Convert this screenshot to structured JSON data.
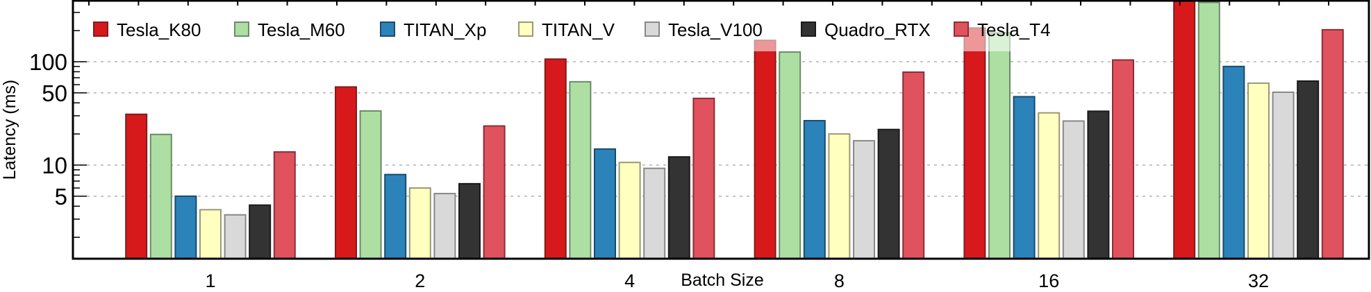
{
  "chart_data": {
    "type": "bar",
    "title": "",
    "xlabel": "Batch Size",
    "ylabel": "Latency (ms)",
    "yscale": "log",
    "ylim": [
      1.24,
      400
    ],
    "yticks": [
      5,
      10,
      50,
      100
    ],
    "ytick_labels": [
      "5",
      "10",
      "50",
      "100"
    ],
    "grid": "horizontal dotted at major y ticks",
    "legend_position": "top",
    "categories": [
      "1",
      "2",
      "4",
      "8",
      "16",
      "32"
    ],
    "series": [
      {
        "name": "Tesla_K80",
        "color": "#d7191c",
        "edge": "#7f1d1d",
        "values": [
          31,
          57,
          106,
          161,
          212,
          430
        ]
      },
      {
        "name": "Tesla_M60",
        "color": "#addfa3",
        "edge": "#6b8a67",
        "values": [
          19.8,
          33.4,
          64,
          124,
          190,
          375
        ]
      },
      {
        "name": "TITAN_Xp",
        "color": "#2b83ba",
        "edge": "#1b4a6b",
        "values": [
          5.0,
          8.1,
          14.3,
          26.9,
          45.9,
          90
        ]
      },
      {
        "name": "TITAN_V",
        "color": "#ffffbf",
        "edge": "#999977",
        "values": [
          3.7,
          6.0,
          10.6,
          20,
          32,
          62
        ]
      },
      {
        "name": "Tesla_V100",
        "color": "#d9d9d9",
        "edge": "#888888",
        "values": [
          3.3,
          5.3,
          9.3,
          17.2,
          26.7,
          50.7
        ]
      },
      {
        "name": "Quadro_RTX",
        "color": "#333333",
        "edge": "#1a1a1a",
        "values": [
          4.1,
          6.6,
          12.0,
          22.1,
          33.2,
          65
        ]
      },
      {
        "name": "Tesla_T4",
        "color": "#e0525e",
        "edge": "#8a2e36",
        "values": [
          13.4,
          23.9,
          44.2,
          79.3,
          104,
          204
        ]
      }
    ]
  }
}
